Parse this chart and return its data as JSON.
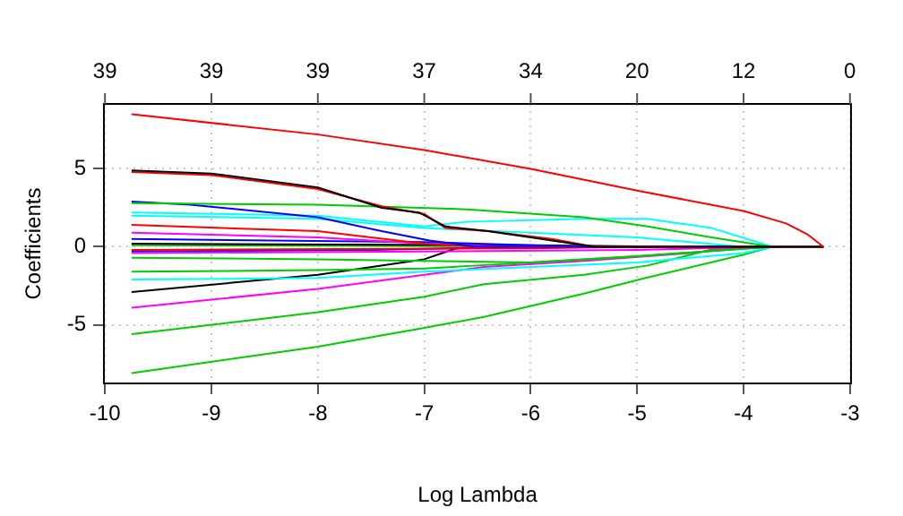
{
  "chart_data": {
    "type": "line",
    "xlabel": "Log Lambda",
    "ylabel": "Coefficients",
    "xlim": [
      -10.01,
      -2.99
    ],
    "xticks": [
      -10,
      -9,
      -8,
      -7,
      -6,
      -5,
      -4,
      -3
    ],
    "ylim": [
      -8.76,
      9.16
    ],
    "yticks": [
      -5,
      0,
      5
    ],
    "grid": true,
    "legend": false,
    "marker": "none",
    "line_style": "solid",
    "annotations": [
      "39",
      "39",
      "39",
      "37",
      "34",
      "20",
      "12",
      "0"
    ],
    "series": [
      {
        "color": "#ff0000",
        "x": [
          -9.75,
          -8,
          -7,
          -6,
          -5,
          -4,
          -3.6,
          -3.4,
          -3.25
        ],
        "values": [
          8.5,
          7.2,
          6.2,
          5.0,
          3.6,
          2.3,
          1.5,
          0.8,
          0
        ]
      },
      {
        "color": "#000000",
        "x": [
          -9.75,
          -9,
          -8,
          -7.4,
          -7.05,
          -6.8,
          -6.4,
          -5.8,
          -5.4,
          -3.25
        ],
        "values": [
          4.9,
          4.7,
          3.8,
          2.5,
          2.2,
          1.3,
          1.0,
          0.4,
          0,
          0
        ]
      },
      {
        "color": "#ff0000",
        "x": [
          -9.75,
          -9,
          -8,
          -7.4,
          -7,
          -6.8,
          -6.4,
          -5.8,
          -5.4,
          -3.25
        ],
        "values": [
          4.8,
          4.6,
          3.7,
          2.6,
          2.1,
          1.2,
          1.0,
          0.5,
          0,
          0
        ]
      },
      {
        "color": "#00cd00",
        "x": [
          -9.75,
          -8,
          -6.6,
          -5.5,
          -4.9,
          -4.3,
          -3.73,
          -3.25
        ],
        "values": [
          2.8,
          2.7,
          2.4,
          1.9,
          1.3,
          0.6,
          0,
          0
        ]
      },
      {
        "color": "#0000ff",
        "x": [
          -9.75,
          -9.2,
          -8,
          -7.4,
          -6.95,
          -6.5,
          -3.25
        ],
        "values": [
          2.9,
          2.7,
          1.9,
          1.0,
          0.4,
          0,
          0
        ]
      },
      {
        "color": "#00ffff",
        "x": [
          -9.75,
          -8,
          -7,
          -6.6,
          -5.5,
          -4.9,
          -4.3,
          -3.73
        ],
        "values": [
          2.2,
          2.0,
          1.3,
          1.6,
          1.8,
          1.8,
          1.2,
          0
        ]
      },
      {
        "color": "#00ffff",
        "x": [
          -9.75,
          -8,
          -7,
          -6,
          -5,
          -4.5,
          -4,
          -3.25
        ],
        "values": [
          2.0,
          1.8,
          1.2,
          0.9,
          0.6,
          0.3,
          0,
          0
        ]
      },
      {
        "color": "#ff0000",
        "x": [
          -9.75,
          -8,
          -7,
          -6.5,
          -3.25
        ],
        "values": [
          1.4,
          1.0,
          0.2,
          0,
          0
        ]
      },
      {
        "color": "#ff00ff",
        "x": [
          -9.75,
          -8,
          -7,
          -6.2,
          -3.25
        ],
        "values": [
          0.9,
          0.6,
          0.2,
          0,
          0
        ]
      },
      {
        "color": "#0000ff",
        "x": [
          -9.75,
          -7,
          -5.5,
          -3.25
        ],
        "values": [
          0.5,
          0.3,
          0,
          0
        ]
      },
      {
        "color": "#000000",
        "x": [
          -9.75,
          -6,
          -4.5,
          -3.25
        ],
        "values": [
          0.2,
          0.1,
          0,
          0
        ]
      },
      {
        "color": "#00cd00",
        "x": [
          -9.75,
          -5,
          -3.25
        ],
        "values": [
          0.1,
          0,
          0
        ]
      },
      {
        "color": "#ff0000",
        "x": [
          -9.75,
          -6,
          -5,
          -3.25
        ],
        "values": [
          -0.2,
          -0.1,
          0,
          0
        ]
      },
      {
        "color": "#ff00ff",
        "x": [
          -9.75,
          -7,
          -5,
          -3.73,
          -3.25
        ],
        "values": [
          -0.4,
          -0.3,
          -0.2,
          0,
          0
        ]
      },
      {
        "color": "#0000ff",
        "x": [
          -9.75,
          -7.5,
          -6,
          -3.25
        ],
        "values": [
          -0.3,
          -0.2,
          0,
          0
        ]
      },
      {
        "color": "#00cd00",
        "x": [
          -9.75,
          -8,
          -7,
          -6,
          -5,
          -3.73,
          -3.25
        ],
        "values": [
          -0.7,
          -0.8,
          -0.9,
          -1.0,
          -0.6,
          0,
          0
        ]
      },
      {
        "color": "#00cd00",
        "x": [
          -9.75,
          -8,
          -7,
          -6.5,
          -6,
          -5,
          -3.73,
          -3.25
        ],
        "values": [
          -1.6,
          -1.5,
          -1.4,
          -1.2,
          -1.0,
          -0.6,
          0,
          0
        ]
      },
      {
        "color": "#00ffff",
        "x": [
          -9.75,
          -8,
          -7,
          -6,
          -5,
          -4,
          -3.73,
          -3.25
        ],
        "values": [
          -2.1,
          -2.0,
          -1.6,
          -1.3,
          -1.0,
          -0.4,
          0,
          0
        ]
      },
      {
        "color": "#000000",
        "x": [
          -9.75,
          -8,
          -7,
          -6.7,
          -6.3,
          -3.25
        ],
        "values": [
          -2.9,
          -1.8,
          -0.8,
          -0.1,
          0,
          0
        ]
      },
      {
        "color": "#ff00ff",
        "x": [
          -9.75,
          -8,
          -7,
          -6.44,
          -5.5,
          -4.5,
          -4,
          -3.25
        ],
        "values": [
          -3.9,
          -2.7,
          -1.8,
          -1.3,
          -0.9,
          -0.4,
          0,
          0
        ]
      },
      {
        "color": "#00cd00",
        "x": [
          -9.75,
          -8,
          -7,
          -6.44,
          -5.5,
          -4.9,
          -4.2,
          -3.25
        ],
        "values": [
          -5.6,
          -4.2,
          -3.2,
          -2.4,
          -1.8,
          -1.2,
          0,
          0
        ]
      },
      {
        "color": "#00cd00",
        "x": [
          -9.75,
          -8,
          -7,
          -6.44,
          -5.5,
          -4.92,
          -4,
          -3.73,
          -3.25
        ],
        "values": [
          -8.1,
          -6.4,
          -5.2,
          -4.5,
          -3.0,
          -2.0,
          -0.5,
          0,
          0
        ]
      }
    ]
  }
}
